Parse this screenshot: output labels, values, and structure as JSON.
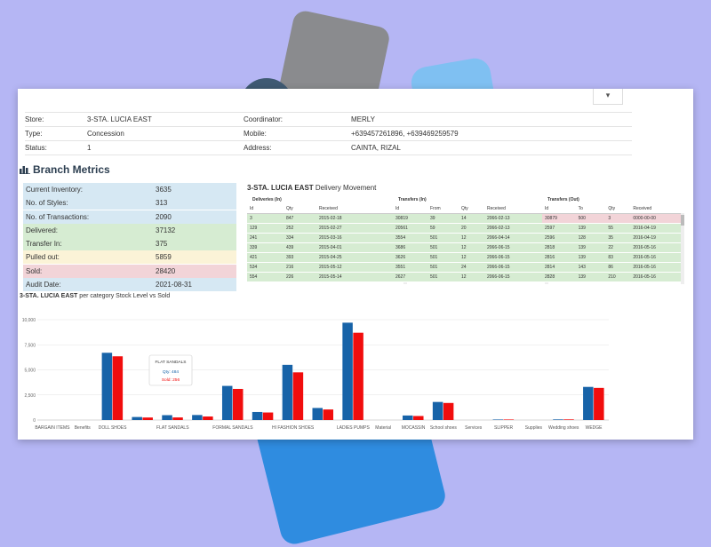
{
  "store": {
    "rows": [
      {
        "l1": "Store:",
        "v1": "3-STA. LUCIA EAST",
        "l2": "Coordinator:",
        "v2": "MERLY"
      },
      {
        "l1": "Type:",
        "v1": "Concession",
        "l2": "Mobile:",
        "v2": "+639457261896, +639469259579"
      },
      {
        "l1": "Status:",
        "v1": "1",
        "l2": "Address:",
        "v2": "CAINTA, RIZAL"
      }
    ]
  },
  "metrics_title": "Branch Metrics",
  "metrics": [
    {
      "label": "Current Inventory:",
      "value": "3635",
      "color": "#d6e8f3"
    },
    {
      "label": "No. of Styles:",
      "value": "313",
      "color": "#d6e8f3"
    },
    {
      "label": "No. of Transactions:",
      "value": "2090",
      "color": "#d6e8f3"
    },
    {
      "label": "Delivered:",
      "value": "37132",
      "color": "#d6ecd2"
    },
    {
      "label": "Transfer In:",
      "value": "375",
      "color": "#d6ecd2"
    },
    {
      "label": "Pulled out:",
      "value": "5859",
      "color": "#fbf3d7"
    },
    {
      "label": "Sold:",
      "value": "28420",
      "color": "#f2d4d8"
    },
    {
      "label": "Audit Date:",
      "value": "2021-08-31",
      "color": "#d6e8f3"
    }
  ],
  "delivery": {
    "title_store": "3-STA. LUCIA EAST",
    "title_rest": "Delivery Movement"
  },
  "tables": {
    "deliveries": {
      "caption": "Deliveries (In)",
      "headers": [
        "Id",
        "Qty",
        "Received"
      ],
      "rows": [
        [
          "3",
          "847",
          "2015-02-18"
        ],
        [
          "129",
          "252",
          "2015-02-27"
        ],
        [
          "241",
          "334",
          "2015-03-16"
        ],
        [
          "339",
          "439",
          "2015-04-01"
        ],
        [
          "421",
          "393",
          "2015-04-25"
        ],
        [
          "534",
          "216",
          "2015-05-12"
        ],
        [
          "554",
          "226",
          "2015-05-14"
        ]
      ]
    },
    "transfers_in": {
      "caption": "Transfers (In)",
      "headers": [
        "Id",
        "From",
        "Qty",
        "Received"
      ],
      "rows": [
        [
          "30819",
          "39",
          "14",
          "2066-02-13"
        ],
        [
          "20561",
          "59",
          "20",
          "2066-02-13"
        ],
        [
          "3554",
          "501",
          "12",
          "2066-04-14"
        ],
        [
          "3686",
          "501",
          "12",
          "2066-06-15"
        ],
        [
          "3626",
          "501",
          "12",
          "2066-06-15"
        ],
        [
          "3551",
          "501",
          "24",
          "2066-06-15"
        ],
        [
          "2627",
          "501",
          "12",
          "2066-06-15"
        ]
      ]
    },
    "transfers_out": {
      "caption": "Transfers (Out)",
      "headers": [
        "Id",
        "To",
        "Qty",
        "Received"
      ],
      "rows": [
        [
          "30879",
          "500",
          "3",
          "0000-00-00"
        ],
        [
          "2597",
          "139",
          "55",
          "2016-04-19"
        ],
        [
          "2596",
          "128",
          "35",
          "2016-04-19"
        ],
        [
          "2818",
          "139",
          "22",
          "2016-05-16"
        ],
        [
          "2816",
          "139",
          "83",
          "2016-05-16"
        ],
        [
          "2814",
          "143",
          "86",
          "2016-05-16"
        ],
        [
          "2828",
          "139",
          "210",
          "2016-05-16"
        ]
      ]
    }
  },
  "chart_title": {
    "store": "3-STA. LUCIA EAST",
    "rest": "per category Stock Level vs Sold"
  },
  "chart_data": {
    "type": "bar",
    "categories": [
      "BARGAIN ITEMS",
      "Benefits",
      "DOLL SHOES",
      "",
      "FLAT SANDALS",
      "",
      "FORMAL SANDALS",
      "",
      "HI FASHION SHOES",
      "",
      "LADIES PUMPS",
      "Material",
      "MOCASSIN",
      "School shoes",
      "Services",
      "SLIPPER",
      "Supplies",
      "Wedding shoes",
      "WEDGE"
    ],
    "series": [
      {
        "name": "Qty",
        "color": "#1763a8",
        "values": [
          0,
          0,
          6700,
          300,
          484,
          500,
          3400,
          800,
          5500,
          1200,
          9700,
          0,
          450,
          1800,
          0,
          50,
          0,
          60,
          3300
        ]
      },
      {
        "name": "Sold",
        "color": "#f10d0d",
        "values": [
          0,
          0,
          6350,
          250,
          256,
          350,
          3100,
          750,
          4750,
          1050,
          8700,
          0,
          400,
          1700,
          0,
          50,
          0,
          60,
          3200
        ]
      }
    ],
    "ylim": [
      0,
      10000
    ],
    "yticks": [
      "0",
      "2,500",
      "5,000",
      "7,500",
      "10,000"
    ],
    "tooltip": {
      "title": "FLAT SANDALS",
      "qty": "Qty: 484",
      "sold": "Sold: 256"
    }
  }
}
